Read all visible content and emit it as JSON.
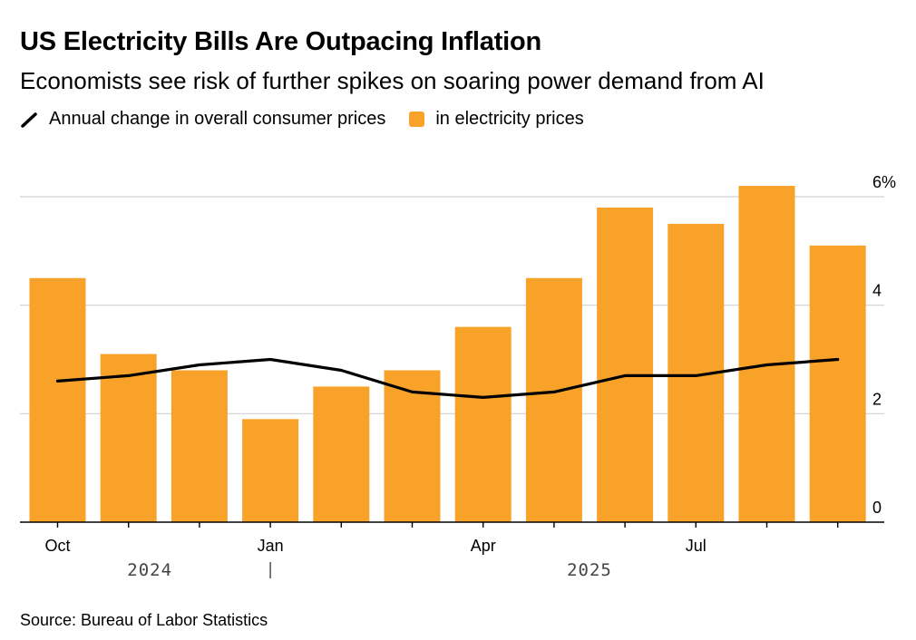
{
  "title": "US Electricity Bills Are Outpacing Inflation",
  "subtitle": "Economists see risk of further spikes on soaring power demand from AI",
  "legend": {
    "line_label": "Annual change in overall consumer prices",
    "bar_label": "in electricity prices"
  },
  "source": "Source: Bureau of Labor Statistics",
  "colors": {
    "bar": "#f9a22a",
    "line": "#000000",
    "grid": "#d0d0d0",
    "axis": "#000000"
  },
  "chart_data": {
    "type": "bar",
    "title": "US Electricity Bills Are Outpacing Inflation",
    "ylabel": "",
    "xlabel": "",
    "ylim": [
      0,
      6
    ],
    "yticks": [
      0,
      2,
      4,
      6
    ],
    "ytick_labels": [
      "0",
      "2",
      "4",
      "6%"
    ],
    "categories": [
      "Oct 2024",
      "Nov 2024",
      "Dec 2024",
      "Jan 2025",
      "Feb 2025",
      "Mar 2025",
      "Apr 2025",
      "May 2025",
      "Jun 2025",
      "Jul 2025",
      "Aug 2025",
      "Sep 2025"
    ],
    "xtick_labels": [
      {
        "index": 0,
        "label": "Oct"
      },
      {
        "index": 3,
        "label": "Jan"
      },
      {
        "index": 6,
        "label": "Apr"
      },
      {
        "index": 9,
        "label": "Jul"
      }
    ],
    "year_labels": [
      {
        "label": "2024",
        "center_index": 1.3
      },
      {
        "label": "2025",
        "center_index": 7.5
      }
    ],
    "year_divider_index": 3,
    "series": [
      {
        "name": "in electricity prices",
        "kind": "bar",
        "values": [
          4.5,
          3.1,
          2.8,
          1.9,
          2.5,
          2.8,
          3.6,
          4.5,
          5.8,
          5.5,
          6.2,
          5.1
        ]
      },
      {
        "name": "Annual change in overall consumer prices",
        "kind": "line",
        "values": [
          2.6,
          2.7,
          2.9,
          3.0,
          2.8,
          2.4,
          2.3,
          2.4,
          2.7,
          2.7,
          2.9,
          3.0
        ]
      }
    ]
  }
}
